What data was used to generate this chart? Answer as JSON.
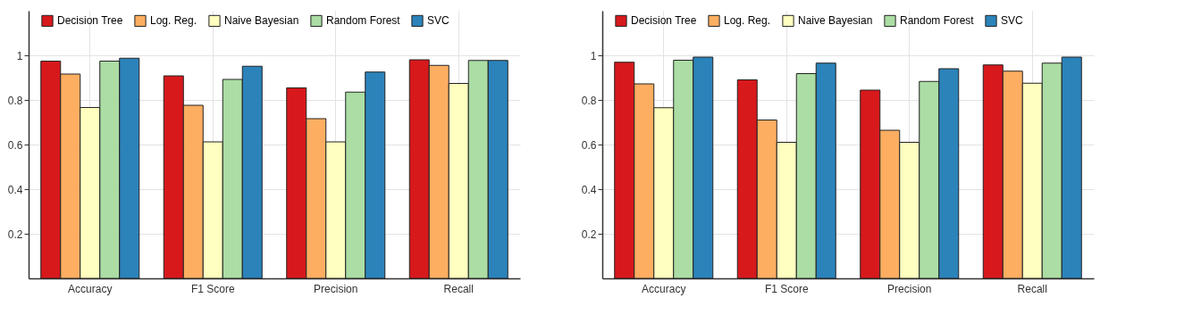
{
  "chart_data": [
    {
      "type": "bar",
      "categories": [
        "Accuracy",
        "F1 Score",
        "Precision",
        "Recall"
      ],
      "series": [
        {
          "name": "Decision Tree",
          "color": "#d7191c",
          "values": [
            0.974,
            0.908,
            0.854,
            0.98
          ]
        },
        {
          "name": "Log. Reg.",
          "color": "#fdae61",
          "values": [
            0.916,
            0.776,
            0.716,
            0.955
          ]
        },
        {
          "name": "Naive Bayesian",
          "color": "#ffffbf",
          "values": [
            0.766,
            0.612,
            0.612,
            0.874
          ]
        },
        {
          "name": "Random Forest",
          "color": "#abdda4",
          "values": [
            0.974,
            0.892,
            0.835,
            0.977
          ]
        },
        {
          "name": "SVC",
          "color": "#2b83ba",
          "values": [
            0.987,
            0.951,
            0.925,
            0.977
          ]
        }
      ],
      "ylim": [
        0,
        1.2
      ],
      "yticks": [
        0.2,
        0.4,
        0.6,
        0.8,
        1
      ],
      "grid": true,
      "legend": "top"
    },
    {
      "type": "bar",
      "categories": [
        "Accuracy",
        "F1 Score",
        "Precision",
        "Recall"
      ],
      "series": [
        {
          "name": "Decision Tree",
          "color": "#d7191c",
          "values": [
            0.969,
            0.89,
            0.844,
            0.957
          ]
        },
        {
          "name": "Log. Reg.",
          "color": "#fdae61",
          "values": [
            0.872,
            0.71,
            0.664,
            0.929
          ]
        },
        {
          "name": "Naive Bayesian",
          "color": "#ffffbf",
          "values": [
            0.765,
            0.61,
            0.61,
            0.875
          ]
        },
        {
          "name": "Random Forest",
          "color": "#abdda4",
          "values": [
            0.978,
            0.918,
            0.883,
            0.965
          ]
        },
        {
          "name": "SVC",
          "color": "#2b83ba",
          "values": [
            0.992,
            0.965,
            0.94,
            0.992
          ]
        }
      ],
      "ylim": [
        0,
        1.2
      ],
      "yticks": [
        0.2,
        0.4,
        0.6,
        0.8,
        1
      ],
      "grid": true,
      "legend": "top"
    }
  ]
}
